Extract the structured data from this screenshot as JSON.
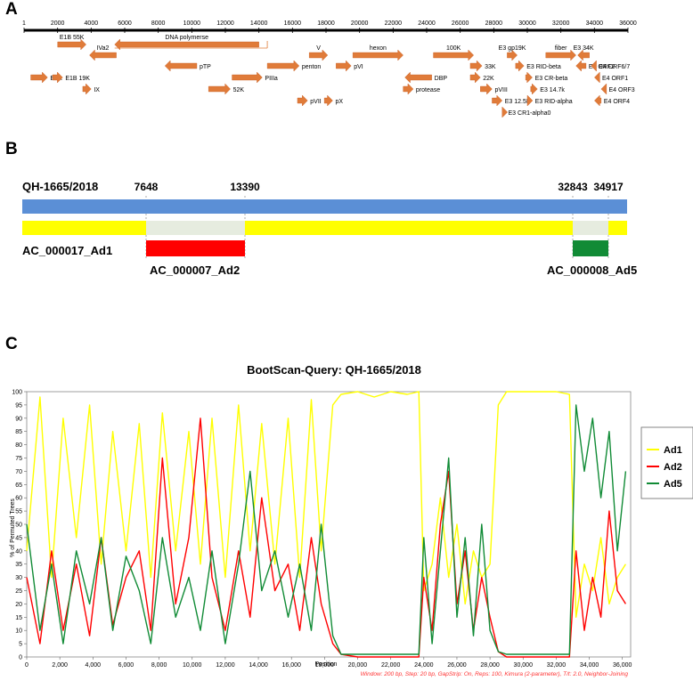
{
  "panels": {
    "a": "A",
    "b": "B",
    "c": "C"
  },
  "genome_map": {
    "axis_ticks": [
      "1",
      "2000",
      "4000",
      "6000",
      "8000",
      "10000",
      "12000",
      "14000",
      "16000",
      "18000",
      "20000",
      "22000",
      "24000",
      "26000",
      "28000",
      "30000",
      "32000",
      "34000",
      "36000"
    ],
    "genes": [
      {
        "name": "E1A",
        "start": 400,
        "end": 1400,
        "strand": "+"
      },
      {
        "name": "E1B 55K",
        "start": 2000,
        "end": 3700,
        "strand": "+"
      },
      {
        "name": "E1B 19K",
        "start": 1700,
        "end": 2300,
        "strand": "+"
      },
      {
        "name": "IX",
        "start": 3500,
        "end": 4000,
        "strand": "+"
      },
      {
        "name": "IVa2",
        "start": 3900,
        "end": 5500,
        "strand": "-"
      },
      {
        "name": "DNA polymerse",
        "start": 5400,
        "end": 14000,
        "strand": "-"
      },
      {
        "name": "pTP",
        "start": 8400,
        "end": 10300,
        "strand": "-"
      },
      {
        "name": "52K",
        "start": 11000,
        "end": 12300,
        "strand": "+"
      },
      {
        "name": "PIIIa",
        "start": 12400,
        "end": 14200,
        "strand": "+"
      },
      {
        "name": "penton",
        "start": 14500,
        "end": 16400,
        "strand": "+"
      },
      {
        "name": "pVII",
        "start": 16300,
        "end": 16900,
        "strand": "+"
      },
      {
        "name": "V",
        "start": 17000,
        "end": 18100,
        "strand": "+"
      },
      {
        "name": "pX",
        "start": 17900,
        "end": 18400,
        "strand": "+"
      },
      {
        "name": "pVI",
        "start": 18600,
        "end": 19500,
        "strand": "+"
      },
      {
        "name": "hexon",
        "start": 19600,
        "end": 22600,
        "strand": "+"
      },
      {
        "name": "protease",
        "start": 22600,
        "end": 23200,
        "strand": "+"
      },
      {
        "name": "DBP",
        "start": 22700,
        "end": 24300,
        "strand": "-"
      },
      {
        "name": "100K",
        "start": 24400,
        "end": 26800,
        "strand": "+"
      },
      {
        "name": "33K",
        "start": 26600,
        "end": 27300,
        "strand": "+"
      },
      {
        "name": "22K",
        "start": 26600,
        "end": 27200,
        "strand": "+"
      },
      {
        "name": "pVIII",
        "start": 27200,
        "end": 27900,
        "strand": "+"
      },
      {
        "name": "E3 12.5K",
        "start": 27900,
        "end": 28500,
        "strand": "+"
      },
      {
        "name": "E3 CR1-alpha0",
        "start": 28500,
        "end": 28700,
        "strand": "+"
      },
      {
        "name": "E3 gp19K",
        "start": 28800,
        "end": 29400,
        "strand": "+"
      },
      {
        "name": "E3 RID-beta",
        "start": 29300,
        "end": 29800,
        "strand": "+"
      },
      {
        "name": "E3 CR-beta",
        "start": 29900,
        "end": 30300,
        "strand": "+"
      },
      {
        "name": "E3 14.7k",
        "start": 30200,
        "end": 30600,
        "strand": "+"
      },
      {
        "name": "E3 RID-alpha",
        "start": 30000,
        "end": 30300,
        "strand": "+"
      },
      {
        "name": "fiber",
        "start": 31100,
        "end": 32900,
        "strand": "+"
      },
      {
        "name": "E3 34K",
        "start": 33000,
        "end": 33700,
        "strand": "-"
      },
      {
        "name": "E4 ORF2",
        "start": 32900,
        "end": 33500,
        "strand": "-"
      },
      {
        "name": "E4 ORF6/7",
        "start": 33800,
        "end": 34100,
        "strand": "-"
      },
      {
        "name": "E4 ORF1",
        "start": 34000,
        "end": 34300,
        "strand": "-"
      },
      {
        "name": "E4 ORF3",
        "start": 34400,
        "end": 34700,
        "strand": "-"
      },
      {
        "name": "E4 ORF4",
        "start": 34000,
        "end": 34400,
        "strand": "-"
      }
    ]
  },
  "recombination": {
    "query": "QH-1665/2018",
    "major_parent": "AC_000017_Ad1",
    "minor_parents": [
      {
        "name": "AC_000007_Ad2",
        "start": "7648",
        "end": "13390",
        "color": "#ff0000"
      },
      {
        "name": "AC_000008_Ad5",
        "start": "32843",
        "end": "34917",
        "color": "#118b36"
      }
    ],
    "query_color": "#5b8fd6",
    "major_color": "#ffff00"
  },
  "chart_data": {
    "type": "line",
    "title": "BootScan-Query: QH-1665/2018",
    "xlabel": "Position",
    "ylabel": "% of Permuted Trees",
    "xlim": [
      0,
      36500
    ],
    "ylim": [
      0,
      100
    ],
    "x_ticks": [
      "0",
      "2,000",
      "4,000",
      "6,000",
      "8,000",
      "10,000",
      "12,000",
      "14,000",
      "16,000",
      "18,000",
      "20,000",
      "22,000",
      "24,000",
      "26,000",
      "28,000",
      "30,000",
      "32,000",
      "34,000",
      "36,000"
    ],
    "y_ticks": [
      "0",
      "5",
      "10",
      "15",
      "20",
      "25",
      "30",
      "35",
      "40",
      "45",
      "50",
      "55",
      "60",
      "65",
      "70",
      "75",
      "80",
      "85",
      "90",
      "95",
      "100"
    ],
    "legend_position": "right",
    "footer": "Window: 200 bp, Step: 20 bp, GapStrip: On, Reps: 100, Kimura (2-parameter), T/t: 2.0, Neighbor-Joining",
    "series": [
      {
        "name": "Ad1",
        "color": "#ffff00",
        "x": [
          0,
          800,
          1500,
          2200,
          3000,
          3800,
          4500,
          5200,
          6000,
          6800,
          7500,
          8200,
          9000,
          9800,
          10500,
          11200,
          12000,
          12800,
          13500,
          14200,
          15000,
          15800,
          16500,
          17200,
          17800,
          18500,
          19000,
          20000,
          21000,
          22000,
          23000,
          23700,
          24000,
          24500,
          25000,
          25500,
          26000,
          26500,
          27000,
          27500,
          28000,
          28500,
          29000,
          30000,
          31000,
          32000,
          32800,
          33200,
          33700,
          34200,
          34700,
          35200,
          35700,
          36200
        ],
        "y": [
          40,
          98,
          30,
          90,
          45,
          95,
          35,
          85,
          40,
          88,
          30,
          92,
          40,
          85,
          35,
          90,
          30,
          95,
          40,
          88,
          35,
          90,
          30,
          97,
          40,
          95,
          99,
          100,
          98,
          100,
          99,
          100,
          25,
          35,
          60,
          30,
          50,
          20,
          40,
          30,
          35,
          95,
          100,
          100,
          100,
          100,
          99,
          15,
          35,
          25,
          45,
          20,
          30,
          35
        ]
      },
      {
        "name": "Ad2",
        "color": "#ff0000",
        "x": [
          0,
          800,
          1500,
          2200,
          3000,
          3800,
          4500,
          5200,
          6000,
          6800,
          7500,
          8200,
          9000,
          9800,
          10500,
          11200,
          12000,
          12800,
          13500,
          14200,
          15000,
          15800,
          16500,
          17200,
          17800,
          18500,
          19000,
          20000,
          21000,
          22000,
          23000,
          23700,
          24000,
          24500,
          25000,
          25500,
          26000,
          26500,
          27000,
          27500,
          28000,
          28500,
          29000,
          30000,
          31000,
          32000,
          32800,
          33200,
          33700,
          34200,
          34700,
          35200,
          35700,
          36200
        ],
        "y": [
          30,
          5,
          40,
          10,
          35,
          8,
          45,
          12,
          30,
          40,
          10,
          75,
          20,
          45,
          90,
          30,
          10,
          40,
          15,
          60,
          25,
          35,
          10,
          45,
          20,
          5,
          1,
          0,
          0,
          0,
          0,
          0,
          30,
          10,
          50,
          70,
          20,
          40,
          10,
          30,
          15,
          2,
          0,
          0,
          0,
          0,
          0,
          40,
          10,
          30,
          15,
          55,
          25,
          20
        ]
      },
      {
        "name": "Ad5",
        "color": "#118b36",
        "x": [
          0,
          800,
          1500,
          2200,
          3000,
          3800,
          4500,
          5200,
          6000,
          6800,
          7500,
          8200,
          9000,
          9800,
          10500,
          11200,
          12000,
          12800,
          13500,
          14200,
          15000,
          15800,
          16500,
          17200,
          17800,
          18500,
          19000,
          20000,
          21000,
          22000,
          23000,
          23700,
          24000,
          24500,
          25000,
          25500,
          26000,
          26500,
          27000,
          27500,
          28000,
          28500,
          29000,
          30000,
          31000,
          32000,
          32800,
          33200,
          33700,
          34200,
          34700,
          35200,
          35700,
          36200
        ],
        "y": [
          50,
          10,
          35,
          5,
          40,
          20,
          45,
          10,
          38,
          25,
          5,
          45,
          15,
          30,
          10,
          40,
          5,
          35,
          70,
          25,
          40,
          15,
          35,
          10,
          50,
          8,
          1,
          1,
          1,
          1,
          1,
          1,
          45,
          5,
          40,
          75,
          15,
          45,
          8,
          50,
          10,
          2,
          1,
          1,
          1,
          1,
          1,
          95,
          70,
          90,
          60,
          85,
          40,
          70
        ]
      }
    ]
  }
}
